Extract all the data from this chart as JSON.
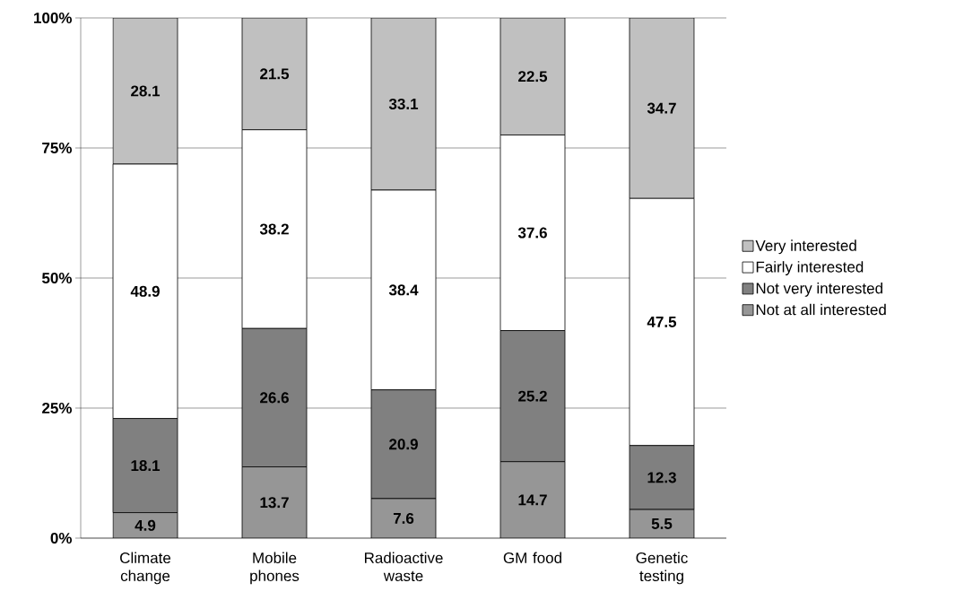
{
  "chart_data": {
    "type": "bar",
    "stacked": true,
    "categories": [
      "Climate change",
      "Mobile phones",
      "Radioactive waste",
      "GM food",
      "Genetic testing"
    ],
    "series": [
      {
        "name": "Not at all interested",
        "color": "#969696",
        "values": [
          4.9,
          13.7,
          7.6,
          14.7,
          5.5
        ]
      },
      {
        "name": "Not very interested",
        "color": "#808080",
        "values": [
          18.1,
          26.6,
          20.9,
          25.2,
          12.3
        ]
      },
      {
        "name": "Fairly interested",
        "color": "#ffffff",
        "values": [
          48.9,
          38.2,
          38.4,
          37.6,
          47.5
        ]
      },
      {
        "name": "Very interested",
        "color": "#c0c0c0",
        "values": [
          28.1,
          21.5,
          33.1,
          22.5,
          34.7
        ]
      }
    ],
    "ylim": [
      0,
      100
    ],
    "yticks": [
      {
        "value": 0,
        "label": "0%"
      },
      {
        "value": 25,
        "label": "25%"
      },
      {
        "value": 50,
        "label": "50%"
      },
      {
        "value": 75,
        "label": "75%"
      },
      {
        "value": 100,
        "label": "100%"
      }
    ],
    "grid": "y",
    "legend": "right",
    "data_labels": true
  }
}
